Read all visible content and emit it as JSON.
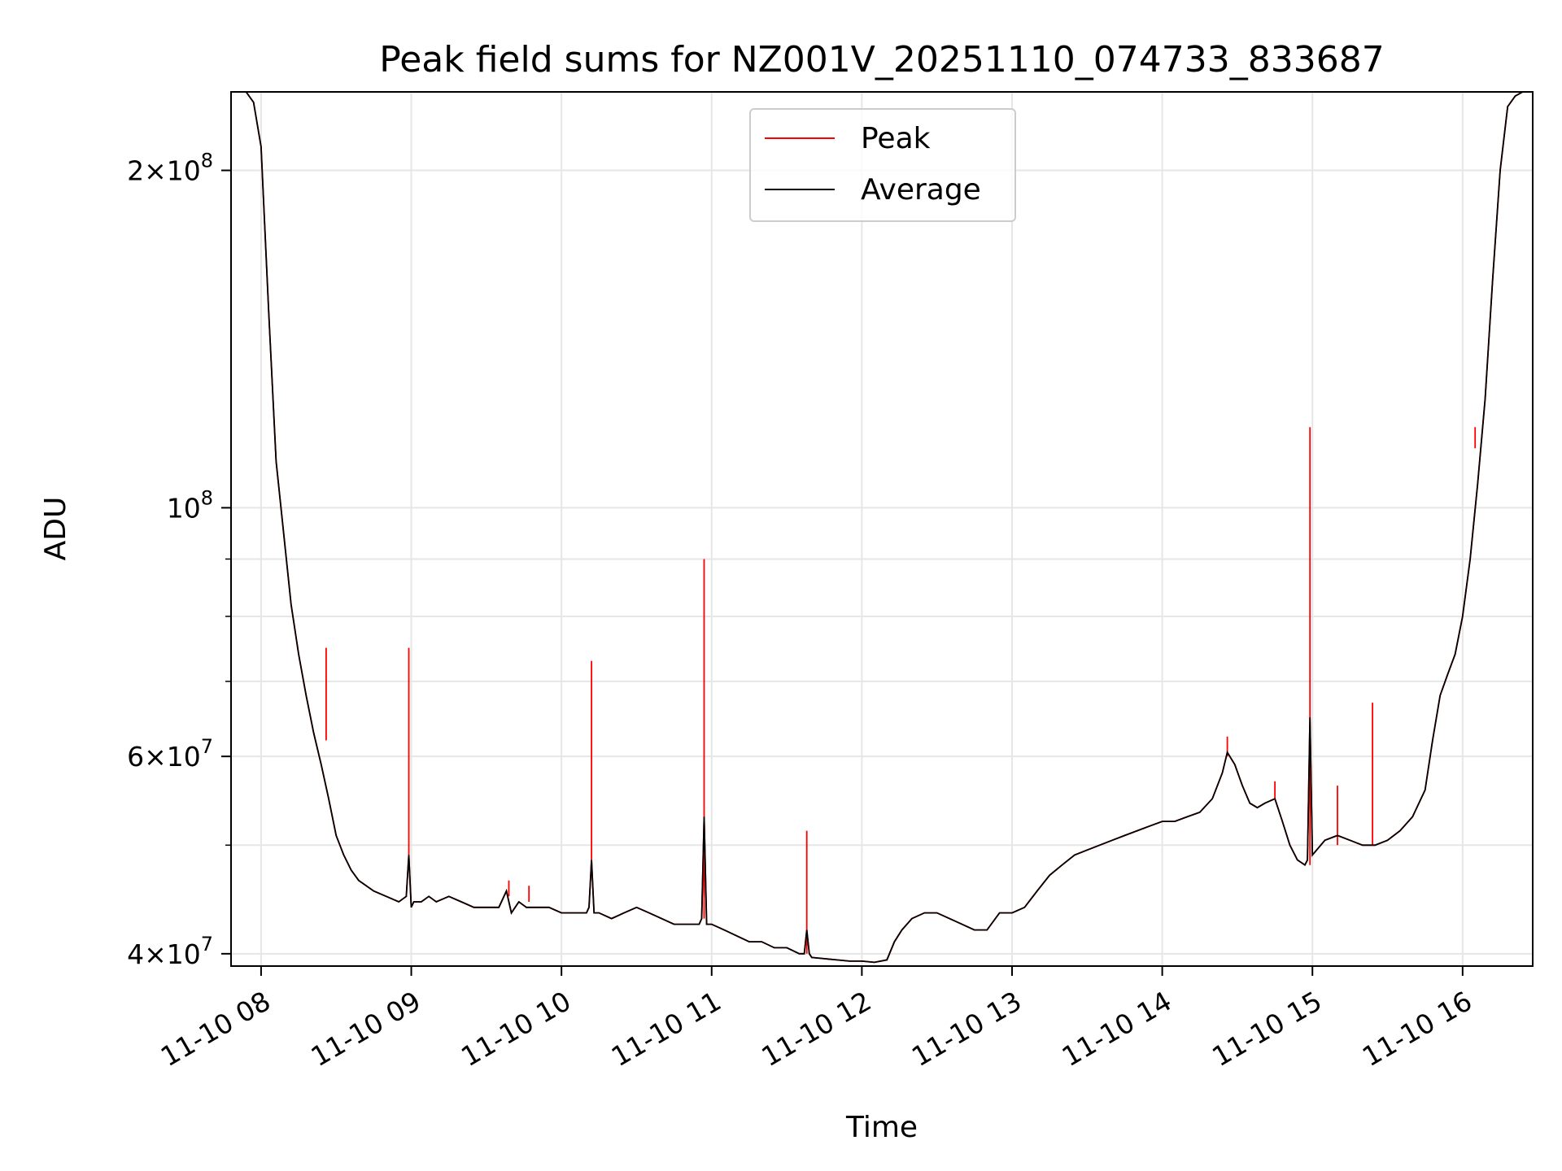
{
  "chart_data": {
    "type": "line",
    "title": "Peak field sums for NZ001V_20251110_074733_833687",
    "xlabel": "Time",
    "ylabel": "ADU",
    "yscale": "log",
    "xlim": [
      "2025-11-10T07:48",
      "2025-11-10T16:28"
    ],
    "ylim": [
      39000000,
      235000000
    ],
    "grid": true,
    "legend": {
      "position": "top-center"
    },
    "x_ticks": [
      {
        "at": "2025-11-10T08:00",
        "label": "11-10 08"
      },
      {
        "at": "2025-11-10T09:00",
        "label": "11-10 09"
      },
      {
        "at": "2025-11-10T10:00",
        "label": "11-10 10"
      },
      {
        "at": "2025-11-10T11:00",
        "label": "11-10 11"
      },
      {
        "at": "2025-11-10T12:00",
        "label": "11-10 12"
      },
      {
        "at": "2025-11-10T13:00",
        "label": "11-10 13"
      },
      {
        "at": "2025-11-10T14:00",
        "label": "11-10 14"
      },
      {
        "at": "2025-11-10T15:00",
        "label": "11-10 15"
      },
      {
        "at": "2025-11-10T16:00",
        "label": "11-10 16"
      }
    ],
    "y_ticks": [
      {
        "value": 40000000,
        "base": "4×10",
        "exp": "7"
      },
      {
        "value": 60000000,
        "base": "6×10",
        "exp": "7"
      },
      {
        "value": 100000000,
        "base": "10",
        "exp": "8"
      },
      {
        "value": 200000000,
        "base": "2×10",
        "exp": "8"
      }
    ],
    "y_minor_ticks": [
      50000000,
      70000000,
      80000000,
      90000000
    ],
    "series": [
      {
        "name": "Peak",
        "color": "#ff0000",
        "x": [
          "2025-11-10T08:26",
          "2025-11-10T08:26",
          "2025-11-10T08:26",
          "2025-11-10T08:59",
          "2025-11-10T08:59",
          "2025-11-10T08:59",
          "2025-11-10T10:12",
          "2025-11-10T10:12",
          "2025-11-10T10:12",
          "2025-11-10T10:57",
          "2025-11-10T10:57",
          "2025-11-10T10:57",
          "2025-11-10T11:38",
          "2025-11-10T11:38",
          "2025-11-10T11:38",
          "2025-11-10T14:59",
          "2025-11-10T14:59",
          "2025-11-10T14:59",
          "2025-11-10T15:10",
          "2025-11-10T15:10",
          "2025-11-10T15:10",
          "2025-11-10T15:24",
          "2025-11-10T15:24",
          "2025-11-10T15:24",
          "2025-11-10T16:05",
          "2025-11-10T16:05",
          "2025-11-10T16:05",
          "2025-11-10T09:39",
          "2025-11-10T09:39",
          "2025-11-10T09:39",
          "2025-11-10T09:47",
          "2025-11-10T09:47",
          "2025-11-10T09:47",
          "2025-11-10T14:26",
          "2025-11-10T14:26",
          "2025-11-10T14:26",
          "2025-11-10T14:45",
          "2025-11-10T14:45",
          "2025-11-10T14:45"
        ],
        "y": [
          62000000,
          75000000,
          62000000,
          48000000,
          75000000,
          48000000,
          48000000,
          73000000,
          48000000,
          43000000,
          90000000,
          43000000,
          40000000,
          51500000,
          40000000,
          48000000,
          118000000,
          48000000,
          50000000,
          56500000,
          50000000,
          50000000,
          67000000,
          50000000,
          113000000,
          118000000,
          113000000,
          45000000,
          46500000,
          45000000,
          44500000,
          46000000,
          44500000,
          60000000,
          62500000,
          60000000,
          55000000,
          57000000,
          55000000
        ]
      },
      {
        "name": "Average",
        "color": "#000000",
        "x": [
          "2025-11-10T07:48",
          "2025-11-10T07:54",
          "2025-11-10T07:57",
          "2025-11-10T08:00",
          "2025-11-10T08:03",
          "2025-11-10T08:06",
          "2025-11-10T08:09",
          "2025-11-10T08:12",
          "2025-11-10T08:15",
          "2025-11-10T08:18",
          "2025-11-10T08:21",
          "2025-11-10T08:24",
          "2025-11-10T08:27",
          "2025-11-10T08:30",
          "2025-11-10T08:33",
          "2025-11-10T08:36",
          "2025-11-10T08:39",
          "2025-11-10T08:42",
          "2025-11-10T08:45",
          "2025-11-10T08:50",
          "2025-11-10T08:55",
          "2025-11-10T08:58",
          "2025-11-10T08:59",
          "2025-11-10T09:00",
          "2025-11-10T09:01",
          "2025-11-10T09:04",
          "2025-11-10T09:07",
          "2025-11-10T09:10",
          "2025-11-10T09:15",
          "2025-11-10T09:20",
          "2025-11-10T09:25",
          "2025-11-10T09:30",
          "2025-11-10T09:35",
          "2025-11-10T09:38",
          "2025-11-10T09:40",
          "2025-11-10T09:43",
          "2025-11-10T09:46",
          "2025-11-10T09:50",
          "2025-11-10T09:55",
          "2025-11-10T10:00",
          "2025-11-10T10:05",
          "2025-11-10T10:10",
          "2025-11-10T10:11",
          "2025-11-10T10:12",
          "2025-11-10T10:13",
          "2025-11-10T10:15",
          "2025-11-10T10:20",
          "2025-11-10T10:25",
          "2025-11-10T10:30",
          "2025-11-10T10:35",
          "2025-11-10T10:40",
          "2025-11-10T10:45",
          "2025-11-10T10:50",
          "2025-11-10T10:55",
          "2025-11-10T10:56",
          "2025-11-10T10:57",
          "2025-11-10T10:58",
          "2025-11-10T11:00",
          "2025-11-10T11:05",
          "2025-11-10T11:10",
          "2025-11-10T11:15",
          "2025-11-10T11:20",
          "2025-11-10T11:25",
          "2025-11-10T11:30",
          "2025-11-10T11:35",
          "2025-11-10T11:37",
          "2025-11-10T11:38",
          "2025-11-10T11:39",
          "2025-11-10T11:40",
          "2025-11-10T11:45",
          "2025-11-10T11:50",
          "2025-11-10T11:55",
          "2025-11-10T12:00",
          "2025-11-10T12:05",
          "2025-11-10T12:10",
          "2025-11-10T12:13",
          "2025-11-10T12:16",
          "2025-11-10T12:20",
          "2025-11-10T12:25",
          "2025-11-10T12:30",
          "2025-11-10T12:35",
          "2025-11-10T12:40",
          "2025-11-10T12:45",
          "2025-11-10T12:50",
          "2025-11-10T12:55",
          "2025-11-10T13:00",
          "2025-11-10T13:05",
          "2025-11-10T13:10",
          "2025-11-10T13:15",
          "2025-11-10T13:20",
          "2025-11-10T13:25",
          "2025-11-10T13:30",
          "2025-11-10T13:35",
          "2025-11-10T13:40",
          "2025-11-10T13:45",
          "2025-11-10T13:50",
          "2025-11-10T13:55",
          "2025-11-10T14:00",
          "2025-11-10T14:05",
          "2025-11-10T14:10",
          "2025-11-10T14:15",
          "2025-11-10T14:20",
          "2025-11-10T14:24",
          "2025-11-10T14:26",
          "2025-11-10T14:29",
          "2025-11-10T14:32",
          "2025-11-10T14:35",
          "2025-11-10T14:38",
          "2025-11-10T14:41",
          "2025-11-10T14:45",
          "2025-11-10T14:48",
          "2025-11-10T14:51",
          "2025-11-10T14:54",
          "2025-11-10T14:57",
          "2025-11-10T14:58",
          "2025-11-10T14:59",
          "2025-11-10T15:00",
          "2025-11-10T15:05",
          "2025-11-10T15:10",
          "2025-11-10T15:15",
          "2025-11-10T15:20",
          "2025-11-10T15:25",
          "2025-11-10T15:30",
          "2025-11-10T15:35",
          "2025-11-10T15:40",
          "2025-11-10T15:45",
          "2025-11-10T15:48",
          "2025-11-10T15:51",
          "2025-11-10T15:54",
          "2025-11-10T15:57",
          "2025-11-10T16:00",
          "2025-11-10T16:03",
          "2025-11-10T16:06",
          "2025-11-10T16:09",
          "2025-11-10T16:12",
          "2025-11-10T16:15",
          "2025-11-10T16:18",
          "2025-11-10T16:21",
          "2025-11-10T16:24",
          "2025-11-10T16:28"
        ],
        "y": [
          235000000,
          235000000,
          230000000,
          210000000,
          150000000,
          110000000,
          95000000,
          82000000,
          74000000,
          68000000,
          63000000,
          59000000,
          55000000,
          51000000,
          49000000,
          47500000,
          46500000,
          46000000,
          45500000,
          45000000,
          44500000,
          45000000,
          49000000,
          44000000,
          44500000,
          44500000,
          45000000,
          44500000,
          45000000,
          44500000,
          44000000,
          44000000,
          44000000,
          45500000,
          43500000,
          44500000,
          44000000,
          44000000,
          44000000,
          43500000,
          43500000,
          43500000,
          44000000,
          48500000,
          43500000,
          43500000,
          43000000,
          43500000,
          44000000,
          43500000,
          43000000,
          42500000,
          42500000,
          42500000,
          43000000,
          53000000,
          42500000,
          42500000,
          42000000,
          41500000,
          41000000,
          41000000,
          40500000,
          40500000,
          40000000,
          40000000,
          42000000,
          40000000,
          39700000,
          39600000,
          39500000,
          39400000,
          39400000,
          39300000,
          39500000,
          41000000,
          42000000,
          43000000,
          43500000,
          43500000,
          43000000,
          42500000,
          42000000,
          42000000,
          43500000,
          43500000,
          44000000,
          45500000,
          47000000,
          48000000,
          49000000,
          49500000,
          50000000,
          50500000,
          51000000,
          51500000,
          52000000,
          52500000,
          52500000,
          53000000,
          53500000,
          55000000,
          58000000,
          60500000,
          59000000,
          56500000,
          54500000,
          54000000,
          54500000,
          55000000,
          52500000,
          50000000,
          48500000,
          48000000,
          48500000,
          65000000,
          49000000,
          50500000,
          51000000,
          50500000,
          50000000,
          50000000,
          50500000,
          51500000,
          53000000,
          56000000,
          62000000,
          68000000,
          71000000,
          74000000,
          80000000,
          90000000,
          105000000,
          125000000,
          160000000,
          200000000,
          228000000,
          233000000,
          235000000,
          235000000
        ]
      }
    ]
  }
}
